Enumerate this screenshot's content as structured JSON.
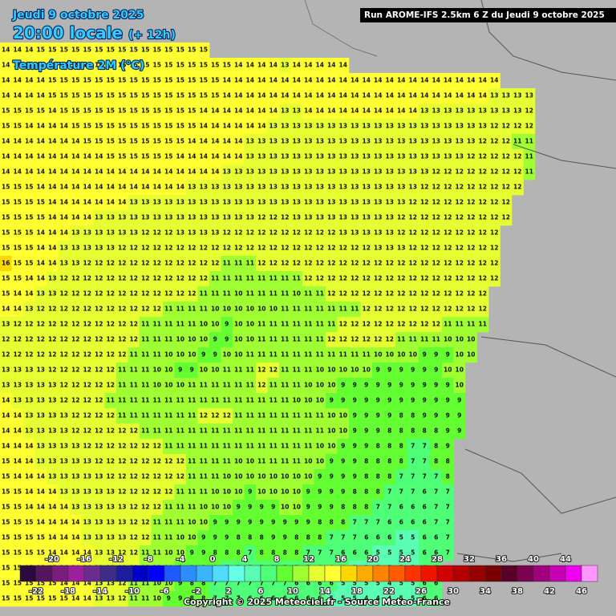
{
  "header": {
    "date": "Jeudi 9 octobre 2025",
    "time": "20:00 locale",
    "lead": "(+ 12h)",
    "parameter": "Température 2M (°C)",
    "run": "Run AROME-IFS 2.5km 6 Z du Jeudi 9 octobre 2025"
  },
  "footer": {
    "copyright": "Copyright © 2025 Meteociel.fr - Source Meteo-France"
  },
  "colorbar": {
    "lim": [
      -24,
      48
    ],
    "colors": [
      "#2b0b3f",
      "#54175f",
      "#7a1d7e",
      "#9c1f9c",
      "#6b2c8f",
      "#3d2d87",
      "#1c1c9c",
      "#0000c8",
      "#0000ff",
      "#1e5aff",
      "#2d8cff",
      "#3cb4ff",
      "#50dcff",
      "#64ffe6",
      "#5affb4",
      "#50ff78",
      "#64ff32",
      "#a0ff32",
      "#e6ff32",
      "#ffff32",
      "#ffd700",
      "#ffaa00",
      "#ff8200",
      "#ff5a00",
      "#ff3200",
      "#f01400",
      "#d20000",
      "#b40000",
      "#960000",
      "#780000",
      "#5a0028",
      "#7d0050",
      "#a0007d",
      "#c800b4",
      "#f000f0",
      "#ff96ff"
    ],
    "top_labels": [
      -20,
      -16,
      -12,
      -8,
      -4,
      0,
      4,
      8,
      12,
      16,
      20,
      24,
      28,
      32,
      36,
      40,
      44
    ],
    "bottom_labels": [
      -22,
      -18,
      -14,
      -10,
      -6,
      -2,
      2,
      6,
      10,
      14,
      18,
      22,
      26,
      30,
      34,
      38,
      42,
      46
    ]
  },
  "map": {
    "rows": [
      [
        14,
        14,
        14,
        15,
        15,
        15,
        15,
        15,
        15,
        15,
        15,
        15,
        15,
        15,
        15,
        15,
        15,
        15
      ],
      [
        14,
        14,
        14,
        14,
        15,
        15,
        15,
        15,
        15,
        15,
        15,
        15,
        15,
        15,
        15,
        15,
        15,
        15,
        15,
        15,
        14,
        14,
        14,
        14,
        13,
        14,
        14,
        14,
        14,
        14
      ],
      [
        14,
        14,
        14,
        14,
        15,
        15,
        15,
        15,
        15,
        15,
        15,
        15,
        15,
        15,
        15,
        15,
        15,
        15,
        15,
        14,
        14,
        14,
        14,
        14,
        14,
        14,
        14,
        14,
        14,
        14,
        14,
        14,
        14,
        14,
        14,
        14,
        14,
        14,
        14,
        14,
        14,
        14,
        14
      ],
      [
        14,
        14,
        14,
        14,
        15,
        15,
        15,
        15,
        15,
        15,
        15,
        15,
        15,
        15,
        15,
        15,
        15,
        15,
        15,
        14,
        14,
        14,
        14,
        14,
        14,
        14,
        14,
        14,
        14,
        14,
        14,
        14,
        14,
        14,
        14,
        14,
        14,
        14,
        14,
        14,
        14,
        14,
        13,
        13,
        13,
        13
      ],
      [
        15,
        15,
        15,
        15,
        14,
        15,
        15,
        15,
        15,
        15,
        15,
        15,
        15,
        15,
        15,
        15,
        15,
        14,
        14,
        14,
        14,
        14,
        14,
        14,
        13,
        13,
        14,
        14,
        14,
        14,
        14,
        14,
        14,
        14,
        14,
        14,
        13,
        13,
        13,
        13,
        13,
        13,
        13,
        13,
        13,
        12
      ],
      [
        15,
        15,
        14,
        14,
        14,
        14,
        15,
        15,
        15,
        15,
        15,
        15,
        15,
        15,
        15,
        15,
        15,
        14,
        14,
        14,
        14,
        14,
        14,
        13,
        13,
        13,
        13,
        13,
        13,
        13,
        13,
        13,
        13,
        13,
        13,
        13,
        13,
        13,
        13,
        13,
        13,
        13,
        12,
        12,
        12,
        12
      ],
      [
        14,
        14,
        14,
        14,
        14,
        14,
        14,
        15,
        15,
        15,
        15,
        15,
        15,
        15,
        15,
        15,
        14,
        14,
        14,
        14,
        14,
        13,
        13,
        13,
        13,
        13,
        13,
        13,
        13,
        13,
        13,
        13,
        13,
        13,
        13,
        13,
        13,
        13,
        13,
        13,
        13,
        12,
        12,
        12,
        11,
        11
      ],
      [
        14,
        14,
        14,
        14,
        14,
        14,
        14,
        14,
        14,
        15,
        15,
        15,
        15,
        15,
        15,
        14,
        14,
        14,
        14,
        14,
        14,
        13,
        13,
        13,
        13,
        13,
        13,
        13,
        13,
        13,
        13,
        13,
        13,
        13,
        13,
        13,
        13,
        13,
        13,
        13,
        12,
        12,
        12,
        12,
        12,
        11
      ],
      [
        14,
        14,
        14,
        14,
        14,
        14,
        14,
        14,
        14,
        14,
        14,
        14,
        14,
        14,
        14,
        14,
        14,
        14,
        14,
        13,
        13,
        13,
        13,
        13,
        13,
        13,
        13,
        13,
        13,
        13,
        13,
        13,
        13,
        13,
        13,
        13,
        13,
        12,
        12,
        12,
        12,
        12,
        12,
        12,
        12,
        11
      ],
      [
        15,
        15,
        15,
        14,
        14,
        14,
        14,
        14,
        14,
        14,
        14,
        14,
        14,
        14,
        14,
        14,
        13,
        13,
        13,
        13,
        13,
        13,
        13,
        13,
        13,
        13,
        13,
        13,
        13,
        13,
        13,
        13,
        13,
        13,
        13,
        13,
        12,
        12,
        12,
        12,
        12,
        12,
        12,
        12,
        12
      ],
      [
        15,
        15,
        15,
        15,
        14,
        14,
        14,
        14,
        14,
        14,
        14,
        13,
        13,
        13,
        13,
        13,
        13,
        13,
        13,
        13,
        13,
        13,
        13,
        13,
        13,
        13,
        13,
        13,
        13,
        13,
        13,
        13,
        13,
        13,
        13,
        12,
        12,
        12,
        12,
        12,
        12,
        12,
        12,
        12
      ],
      [
        15,
        15,
        15,
        15,
        14,
        14,
        14,
        14,
        13,
        13,
        13,
        13,
        13,
        13,
        13,
        13,
        13,
        13,
        13,
        13,
        13,
        13,
        12,
        12,
        12,
        13,
        13,
        13,
        13,
        13,
        13,
        13,
        13,
        13,
        12,
        12,
        12,
        12,
        12,
        12,
        12,
        12,
        12,
        12
      ],
      [
        15,
        15,
        15,
        14,
        14,
        14,
        13,
        13,
        13,
        13,
        13,
        13,
        12,
        12,
        12,
        13,
        13,
        13,
        13,
        12,
        12,
        12,
        12,
        12,
        12,
        12,
        12,
        12,
        12,
        13,
        13,
        13,
        13,
        13,
        12,
        12,
        12,
        12,
        12,
        12,
        12,
        12,
        12
      ],
      [
        15,
        15,
        15,
        14,
        14,
        13,
        13,
        13,
        13,
        13,
        12,
        12,
        12,
        12,
        12,
        12,
        12,
        12,
        12,
        12,
        12,
        12,
        12,
        12,
        12,
        12,
        12,
        12,
        12,
        12,
        12,
        12,
        13,
        13,
        13,
        12,
        12,
        12,
        12,
        12,
        12,
        12,
        12
      ],
      [
        16,
        15,
        15,
        14,
        14,
        13,
        13,
        12,
        12,
        12,
        12,
        12,
        12,
        12,
        12,
        12,
        12,
        12,
        12,
        11,
        11,
        11,
        12,
        12,
        12,
        12,
        12,
        12,
        12,
        12,
        12,
        12,
        12,
        12,
        12,
        12,
        12,
        12,
        12,
        12,
        12,
        12,
        12
      ],
      [
        15,
        15,
        14,
        14,
        13,
        12,
        12,
        12,
        12,
        12,
        12,
        12,
        12,
        12,
        12,
        12,
        12,
        12,
        11,
        11,
        11,
        11,
        11,
        11,
        11,
        11,
        12,
        12,
        12,
        12,
        12,
        12,
        12,
        12,
        12,
        12,
        12,
        12,
        12,
        12,
        12,
        12,
        12
      ],
      [
        15,
        14,
        14,
        13,
        13,
        12,
        12,
        12,
        12,
        12,
        12,
        12,
        12,
        12,
        12,
        12,
        12,
        11,
        11,
        11,
        10,
        11,
        11,
        11,
        11,
        10,
        11,
        11,
        12,
        12,
        12,
        12,
        12,
        12,
        12,
        12,
        12,
        12,
        12,
        12,
        12,
        12
      ],
      [
        14,
        14,
        13,
        12,
        12,
        12,
        12,
        12,
        12,
        12,
        12,
        12,
        12,
        12,
        11,
        11,
        11,
        11,
        10,
        10,
        10,
        10,
        10,
        10,
        11,
        11,
        11,
        11,
        11,
        11,
        11,
        12,
        12,
        12,
        12,
        12,
        12,
        12,
        12,
        12,
        12,
        12
      ],
      [
        13,
        12,
        12,
        12,
        12,
        12,
        12,
        12,
        12,
        12,
        12,
        12,
        11,
        11,
        11,
        11,
        11,
        10,
        10,
        9,
        10,
        10,
        11,
        11,
        11,
        11,
        11,
        11,
        11,
        12,
        12,
        12,
        12,
        12,
        12,
        12,
        12,
        12,
        11,
        11,
        11,
        11
      ],
      [
        12,
        12,
        12,
        12,
        12,
        12,
        12,
        12,
        12,
        12,
        12,
        12,
        11,
        11,
        11,
        10,
        10,
        10,
        9,
        9,
        10,
        10,
        11,
        11,
        11,
        11,
        11,
        11,
        12,
        12,
        12,
        12,
        12,
        12,
        11,
        11,
        11,
        11,
        10,
        10,
        10
      ],
      [
        12,
        12,
        12,
        12,
        12,
        12,
        12,
        12,
        12,
        12,
        12,
        11,
        11,
        11,
        10,
        10,
        10,
        9,
        9,
        10,
        10,
        11,
        11,
        11,
        11,
        11,
        11,
        11,
        11,
        11,
        11,
        11,
        10,
        10,
        10,
        10,
        9,
        9,
        9,
        10,
        10
      ],
      [
        13,
        13,
        13,
        13,
        12,
        12,
        12,
        12,
        12,
        12,
        11,
        11,
        11,
        10,
        10,
        9,
        9,
        10,
        10,
        11,
        11,
        11,
        12,
        12,
        11,
        11,
        11,
        10,
        10,
        10,
        10,
        10,
        9,
        9,
        9,
        9,
        9,
        9,
        10,
        10
      ],
      [
        13,
        13,
        13,
        13,
        13,
        12,
        12,
        12,
        12,
        12,
        11,
        11,
        11,
        10,
        10,
        10,
        11,
        11,
        11,
        11,
        11,
        11,
        12,
        11,
        11,
        11,
        10,
        10,
        10,
        9,
        9,
        9,
        9,
        9,
        9,
        9,
        9,
        9,
        9,
        10
      ],
      [
        14,
        13,
        13,
        13,
        13,
        12,
        12,
        12,
        12,
        11,
        11,
        11,
        11,
        11,
        11,
        11,
        11,
        11,
        11,
        11,
        11,
        11,
        11,
        11,
        11,
        10,
        10,
        10,
        9,
        9,
        9,
        9,
        9,
        9,
        9,
        9,
        9,
        9,
        9,
        9
      ],
      [
        14,
        14,
        13,
        13,
        13,
        13,
        12,
        12,
        12,
        12,
        11,
        11,
        11,
        11,
        11,
        11,
        11,
        12,
        12,
        12,
        11,
        11,
        11,
        11,
        11,
        11,
        11,
        11,
        10,
        10,
        9,
        9,
        9,
        9,
        8,
        8,
        9,
        9,
        9,
        9
      ],
      [
        14,
        14,
        13,
        13,
        13,
        13,
        12,
        12,
        12,
        12,
        12,
        12,
        11,
        11,
        11,
        11,
        11,
        11,
        11,
        11,
        11,
        11,
        11,
        11,
        11,
        11,
        11,
        11,
        10,
        10,
        9,
        9,
        9,
        8,
        8,
        8,
        8,
        8,
        9,
        9
      ],
      [
        14,
        14,
        14,
        13,
        13,
        13,
        13,
        12,
        12,
        12,
        12,
        12,
        12,
        12,
        11,
        11,
        11,
        11,
        11,
        11,
        11,
        11,
        11,
        11,
        11,
        11,
        11,
        10,
        10,
        9,
        9,
        9,
        8,
        8,
        8,
        7,
        7,
        8,
        9
      ],
      [
        15,
        14,
        14,
        13,
        13,
        13,
        13,
        13,
        12,
        12,
        12,
        12,
        12,
        12,
        12,
        12,
        11,
        11,
        11,
        11,
        10,
        10,
        11,
        11,
        11,
        11,
        10,
        10,
        9,
        9,
        9,
        8,
        8,
        8,
        8,
        7,
        7,
        8,
        8
      ],
      [
        15,
        14,
        14,
        14,
        13,
        13,
        13,
        13,
        13,
        12,
        12,
        12,
        12,
        12,
        12,
        12,
        11,
        11,
        11,
        10,
        10,
        10,
        10,
        10,
        10,
        10,
        10,
        9,
        9,
        9,
        9,
        8,
        8,
        8,
        7,
        7,
        7,
        7,
        8
      ],
      [
        15,
        15,
        14,
        14,
        14,
        13,
        13,
        13,
        13,
        13,
        12,
        12,
        12,
        12,
        12,
        11,
        11,
        11,
        10,
        10,
        10,
        9,
        10,
        10,
        10,
        10,
        9,
        9,
        9,
        9,
        8,
        8,
        8,
        7,
        7,
        7,
        6,
        7,
        7
      ],
      [
        15,
        15,
        14,
        14,
        14,
        14,
        13,
        13,
        13,
        13,
        13,
        12,
        12,
        12,
        11,
        11,
        11,
        10,
        10,
        10,
        9,
        9,
        9,
        9,
        10,
        10,
        9,
        9,
        9,
        8,
        8,
        8,
        7,
        7,
        6,
        6,
        6,
        7,
        7
      ],
      [
        15,
        15,
        15,
        14,
        14,
        14,
        14,
        13,
        13,
        13,
        13,
        12,
        12,
        11,
        11,
        11,
        10,
        10,
        9,
        9,
        9,
        9,
        9,
        9,
        9,
        9,
        9,
        8,
        8,
        8,
        7,
        7,
        7,
        6,
        6,
        6,
        6,
        7,
        7
      ],
      [
        15,
        15,
        15,
        15,
        14,
        14,
        14,
        13,
        13,
        13,
        13,
        12,
        12,
        11,
        11,
        10,
        10,
        9,
        9,
        9,
        8,
        8,
        8,
        9,
        9,
        8,
        8,
        8,
        7,
        7,
        7,
        6,
        6,
        6,
        5,
        5,
        6,
        6,
        7
      ],
      [
        15,
        15,
        15,
        15,
        14,
        14,
        14,
        14,
        13,
        13,
        12,
        12,
        11,
        11,
        10,
        10,
        9,
        9,
        8,
        8,
        8,
        7,
        8,
        8,
        8,
        8,
        7,
        7,
        7,
        6,
        6,
        6,
        5,
        5,
        5,
        5,
        6,
        6,
        7
      ],
      [
        15,
        15,
        15,
        15,
        15,
        14,
        14,
        14,
        13,
        13,
        12,
        12,
        11,
        11,
        10,
        9,
        9,
        8,
        8,
        7,
        7,
        7,
        7,
        7,
        7,
        7,
        7,
        6,
        6,
        6,
        5,
        5,
        5,
        5,
        5,
        5,
        6,
        6
      ],
      [
        15,
        15,
        15,
        15,
        15,
        14,
        14,
        14,
        13,
        13,
        12,
        11,
        11,
        10,
        10,
        9,
        8,
        8,
        7,
        7,
        7,
        7,
        7,
        7,
        7,
        6,
        6,
        6,
        6,
        5,
        5,
        5,
        5,
        4,
        5,
        5,
        6,
        6
      ],
      [
        15,
        15,
        15,
        15,
        15,
        15,
        14,
        14,
        13,
        13,
        12,
        11,
        11,
        10,
        9,
        9,
        8,
        8,
        7,
        7,
        7,
        6,
        6,
        6,
        6,
        6,
        6,
        6,
        5,
        5,
        5,
        4,
        4,
        4,
        5,
        5,
        6,
        6
      ]
    ]
  }
}
